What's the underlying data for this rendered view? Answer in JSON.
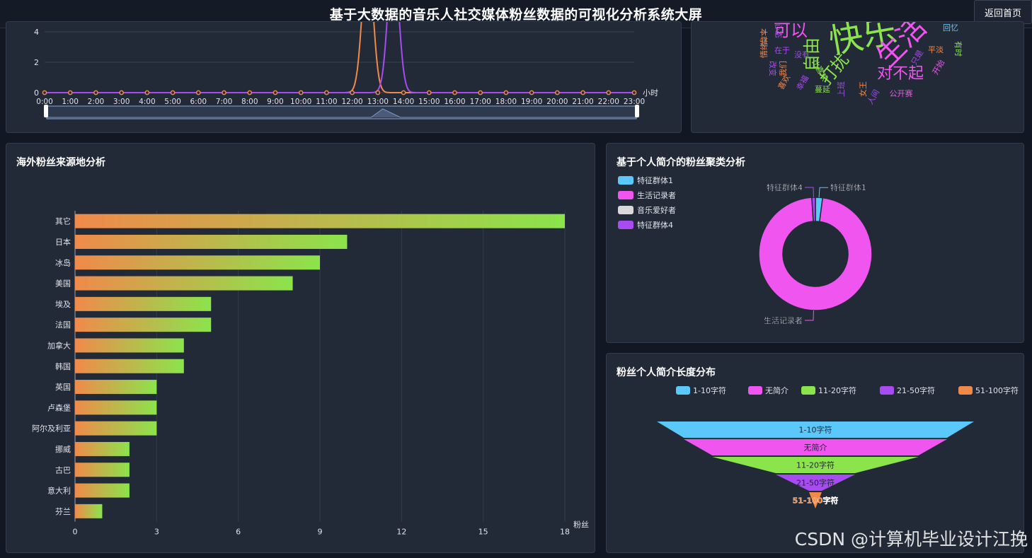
{
  "header": {
    "title": "基于大数据的音乐人社交媒体粉丝数据的可视化分析系统大屏",
    "back_label": "返回首页"
  },
  "watermark": "CSDN @计算机毕业设计江挽",
  "colors": {
    "bg": "#111723",
    "panel": "#222937",
    "cyan": "#5ac8fa",
    "pink": "#f055f0",
    "green": "#8be44c",
    "purple": "#a64cf0",
    "orange": "#f08a4b",
    "grey": "#d9d9d9"
  },
  "chart_data": [
    {
      "type": "line",
      "x": [
        "0:00",
        "1:00",
        "2:00",
        "3:00",
        "4:00",
        "5:00",
        "6:00",
        "7:00",
        "8:00",
        "9:00",
        "10:00",
        "11:00",
        "12:00",
        "13:00",
        "14:00",
        "15:00",
        "16:00",
        "17:00",
        "18:00",
        "19:00",
        "20:00",
        "21:00",
        "22:00",
        "23:00"
      ],
      "x_axis_name": "小时",
      "y_ticks": [
        0,
        2,
        4
      ],
      "series": [
        {
          "color": "#f08a4b",
          "values": [
            0,
            0,
            0,
            0,
            0,
            0,
            0,
            0,
            0,
            0,
            0,
            0,
            0,
            0,
            0,
            0,
            0,
            0,
            0,
            0,
            0,
            0,
            0,
            0
          ],
          "peak_hour": 12.6,
          "peak_value": 9
        },
        {
          "color": "#a64cf0",
          "values": [
            0,
            0,
            0,
            0,
            0,
            0,
            0,
            0,
            0,
            0,
            0,
            0,
            0,
            0,
            0,
            0,
            0,
            0,
            0,
            0,
            0,
            0,
            0,
            0
          ],
          "peak_hour": 13.6,
          "peak_value": 9
        }
      ],
      "has_datazoom": true
    },
    {
      "type": "wordcloud",
      "words": [
        {
          "text": "可以",
          "color": "#f055f0"
        },
        {
          "text": "自由",
          "color": "#8be44c"
        },
        {
          "text": "快乐",
          "color": "#8be44c"
        },
        {
          "text": "生活",
          "color": "#f055f0"
        },
        {
          "text": "打扰",
          "color": "#8be44c"
        },
        {
          "text": "对不起",
          "color": "#f055f0"
        },
        {
          "text": "本尊",
          "color": "#f08a4b"
        },
        {
          "text": "在于",
          "color": "#a64cf0"
        },
        {
          "text": "没有",
          "color": "#a64cf0"
        },
        {
          "text": "比喜欢",
          "color": "#8be44c"
        },
        {
          "text": "蔓延",
          "color": "#8be44c"
        },
        {
          "text": "上班",
          "color": "#a64cf0"
        },
        {
          "text": "女王",
          "color": "#f08a4b"
        },
        {
          "text": "人间",
          "color": "#a64cf0"
        },
        {
          "text": "公开赛",
          "color": "#f055f0"
        },
        {
          "text": "平淡",
          "color": "#f08a4b"
        },
        {
          "text": "只是",
          "color": "#a64cf0"
        },
        {
          "text": "开始",
          "color": "#f055f0"
        },
        {
          "text": "有时",
          "color": "#8be44c"
        },
        {
          "text": "回忆",
          "color": "#5ac8fa"
        },
        {
          "text": "我们",
          "color": "#f08a4b"
        },
        {
          "text": "改变",
          "color": "#a64cf0"
        },
        {
          "text": "情绪",
          "color": "#f08a4b"
        },
        {
          "text": "幸福",
          "color": "#a64cf0"
        },
        {
          "text": "喜欢",
          "color": "#f08a4b"
        },
        {
          "text": "心态",
          "color": "#a64cf0"
        }
      ]
    },
    {
      "type": "bar",
      "title": "海外粉丝来源地分析",
      "orientation": "horizontal",
      "categories": [
        "其它",
        "日本",
        "冰岛",
        "美国",
        "埃及",
        "法国",
        "加拿大",
        "韩国",
        "英国",
        "卢森堡",
        "阿尔及利亚",
        "挪威",
        "古巴",
        "意大利",
        "芬兰"
      ],
      "values": [
        18,
        10,
        9,
        8,
        5,
        5,
        4,
        4,
        3,
        3,
        3,
        2,
        2,
        2,
        1
      ],
      "x_ticks": [
        0,
        3,
        6,
        9,
        12,
        15,
        18
      ],
      "xlim": [
        0,
        18
      ],
      "x_axis_name": "粉丝"
    },
    {
      "type": "pie",
      "title": "基于个人简介的粉丝聚类分析",
      "legend": [
        {
          "name": "特征群体1",
          "color": "#5ac8fa"
        },
        {
          "name": "生活记录者",
          "color": "#f055f0"
        },
        {
          "name": "音乐爱好者",
          "color": "#d9d9d9"
        },
        {
          "name": "特征群体4",
          "color": "#a64cf0"
        }
      ],
      "slices": [
        {
          "name": "特征群体1",
          "value": 2,
          "color": "#5ac8fa"
        },
        {
          "name": "生活记录者",
          "value": 95,
          "color": "#f055f0"
        },
        {
          "name": "音乐爱好者",
          "value": 0,
          "color": "#d9d9d9"
        },
        {
          "name": "特征群体4",
          "value": 1,
          "color": "#a64cf0"
        }
      ]
    },
    {
      "type": "funnel",
      "title": "粉丝个人简介长度分布",
      "legend": [
        {
          "name": "1-10字符",
          "color": "#5ac8fa"
        },
        {
          "name": "无简介",
          "color": "#f055f0"
        },
        {
          "name": "11-20字符",
          "color": "#8be44c"
        },
        {
          "name": "21-50字符",
          "color": "#a64cf0"
        },
        {
          "name": "51-100字符",
          "color": "#f08a4b"
        }
      ],
      "stages": [
        {
          "name": "1-10字符",
          "value": 100,
          "color": "#5ac8fa"
        },
        {
          "name": "无简介",
          "value": 83,
          "color": "#f055f0"
        },
        {
          "name": "11-20字符",
          "value": 65,
          "color": "#8be44c"
        },
        {
          "name": "21-50字符",
          "value": 25,
          "color": "#a64cf0"
        },
        {
          "name": "51-100字符",
          "value": 4,
          "color": "#f08a4b"
        }
      ]
    }
  ]
}
